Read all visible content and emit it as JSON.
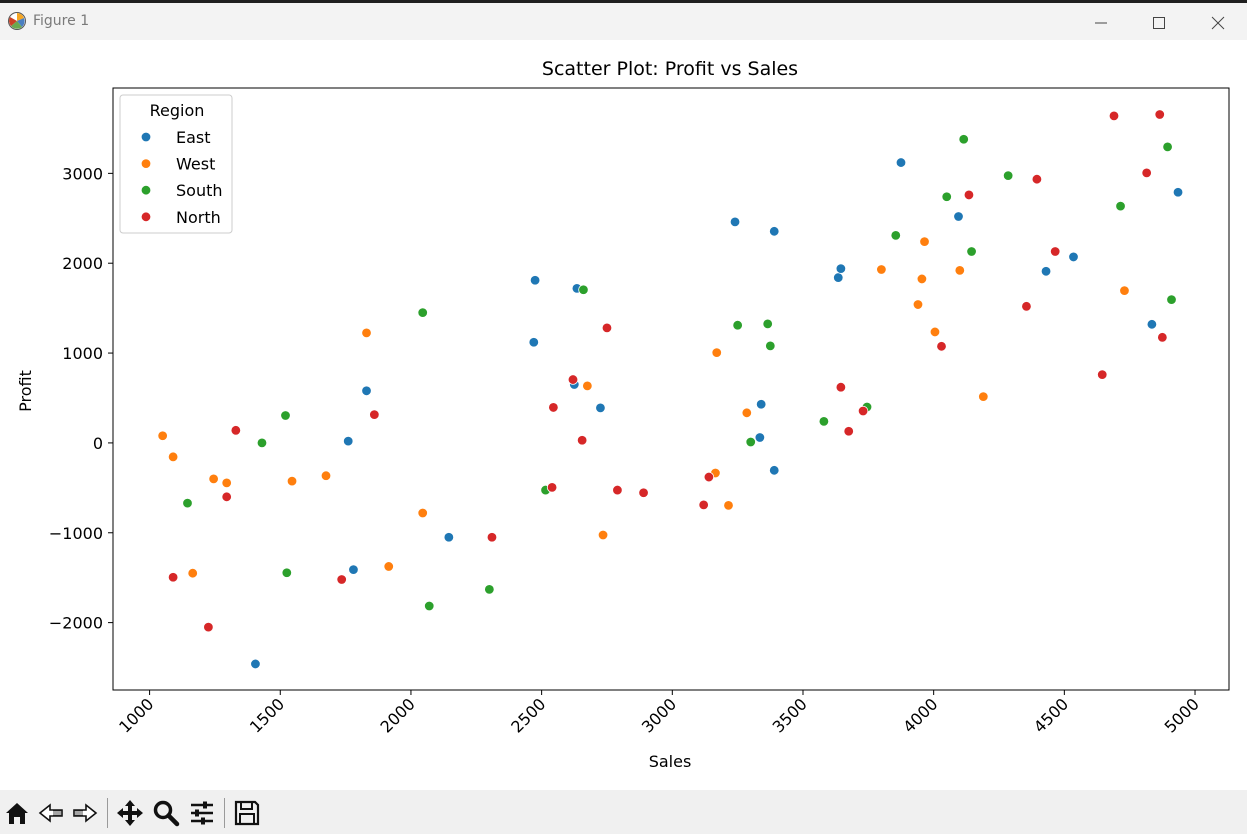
{
  "window": {
    "title": "Figure 1",
    "icon": "matplotlib-icon",
    "controls": [
      "minimize-icon",
      "maximize-icon",
      "close-icon"
    ]
  },
  "toolbar": {
    "tools": [
      "home-icon",
      "back-icon",
      "forward-icon",
      "pan-icon",
      "zoom-icon",
      "configure-icon",
      "save-icon"
    ]
  },
  "chart_data": {
    "type": "scatter",
    "title": "Scatter Plot: Profit vs Sales",
    "xlabel": "Sales",
    "ylabel": "Profit",
    "xlim": [
      860,
      5130
    ],
    "ylim": [
      -2750,
      3950
    ],
    "xticks": [
      1000,
      1500,
      2000,
      2500,
      3000,
      3500,
      4000,
      4500,
      5000
    ],
    "yticks": [
      -2000,
      -1000,
      0,
      1000,
      2000,
      3000
    ],
    "xtick_rotation": 45,
    "grid": false,
    "legend": {
      "title": "Region",
      "placement": "top-left"
    },
    "series": [
      {
        "name": "East",
        "color": "#1f77b4",
        "points": [
          [
            1405,
            -2460
          ],
          [
            1760,
            20
          ],
          [
            1780,
            -1410
          ],
          [
            1830,
            580
          ],
          [
            2145,
            -1050
          ],
          [
            2470,
            1120
          ],
          [
            2475,
            1810
          ],
          [
            2625,
            650
          ],
          [
            2635,
            1720
          ],
          [
            2725,
            390
          ],
          [
            3240,
            2460
          ],
          [
            3335,
            60
          ],
          [
            3340,
            430
          ],
          [
            3390,
            2355
          ],
          [
            3390,
            -305
          ],
          [
            3635,
            1840
          ],
          [
            3645,
            1940
          ],
          [
            3875,
            3120
          ],
          [
            4095,
            2520
          ],
          [
            4430,
            1910
          ],
          [
            4535,
            2070
          ],
          [
            4835,
            1320
          ],
          [
            4935,
            2790
          ]
        ]
      },
      {
        "name": "West",
        "color": "#ff7f0e",
        "points": [
          [
            1050,
            80
          ],
          [
            1090,
            -155
          ],
          [
            1165,
            -1450
          ],
          [
            1245,
            -400
          ],
          [
            1295,
            -445
          ],
          [
            1545,
            -425
          ],
          [
            1675,
            -365
          ],
          [
            1830,
            1225
          ],
          [
            1915,
            -1375
          ],
          [
            2045,
            -780
          ],
          [
            2675,
            635
          ],
          [
            2735,
            -1025
          ],
          [
            3165,
            -335
          ],
          [
            3170,
            1005
          ],
          [
            3215,
            -695
          ],
          [
            3285,
            335
          ],
          [
            3800,
            1930
          ],
          [
            3940,
            1540
          ],
          [
            3955,
            1825
          ],
          [
            3965,
            2240
          ],
          [
            4005,
            1235
          ],
          [
            4100,
            1920
          ],
          [
            4190,
            515
          ],
          [
            4730,
            1695
          ]
        ]
      },
      {
        "name": "South",
        "color": "#2ca02c",
        "points": [
          [
            1145,
            -670
          ],
          [
            1430,
            0
          ],
          [
            1520,
            305
          ],
          [
            1525,
            -1445
          ],
          [
            2045,
            1450
          ],
          [
            2070,
            -1815
          ],
          [
            2300,
            -1630
          ],
          [
            2515,
            -525
          ],
          [
            2660,
            1705
          ],
          [
            3250,
            1310
          ],
          [
            3300,
            10
          ],
          [
            3365,
            1325
          ],
          [
            3375,
            1080
          ],
          [
            3580,
            240
          ],
          [
            3745,
            400
          ],
          [
            3855,
            2310
          ],
          [
            4050,
            2740
          ],
          [
            4115,
            3380
          ],
          [
            4145,
            2130
          ],
          [
            4285,
            2975
          ],
          [
            4715,
            2635
          ],
          [
            4895,
            3295
          ],
          [
            4910,
            1595
          ]
        ]
      },
      {
        "name": "North",
        "color": "#d62728",
        "points": [
          [
            1090,
            -1495
          ],
          [
            1225,
            -2050
          ],
          [
            1295,
            -600
          ],
          [
            1330,
            140
          ],
          [
            1735,
            -1520
          ],
          [
            1860,
            315
          ],
          [
            2310,
            -1050
          ],
          [
            2540,
            -495
          ],
          [
            2545,
            395
          ],
          [
            2620,
            705
          ],
          [
            2655,
            30
          ],
          [
            2750,
            1280
          ],
          [
            2790,
            -525
          ],
          [
            2890,
            -555
          ],
          [
            3120,
            -690
          ],
          [
            3140,
            -380
          ],
          [
            3645,
            620
          ],
          [
            3675,
            130
          ],
          [
            3730,
            355
          ],
          [
            4030,
            1075
          ],
          [
            4135,
            2760
          ],
          [
            4355,
            1520
          ],
          [
            4395,
            2935
          ],
          [
            4465,
            2130
          ],
          [
            4645,
            760
          ],
          [
            4690,
            3640
          ],
          [
            4815,
            3005
          ],
          [
            4865,
            3655
          ],
          [
            4875,
            1175
          ]
        ]
      }
    ]
  }
}
